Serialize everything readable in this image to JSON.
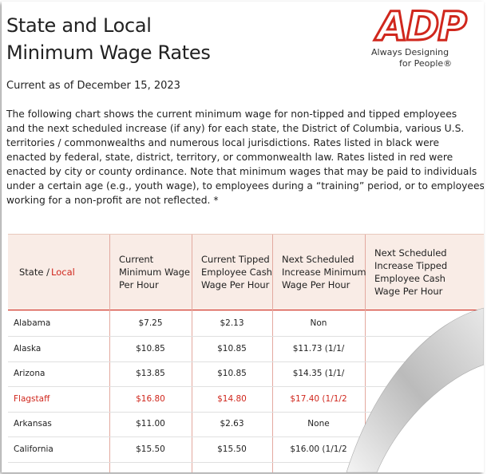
{
  "header": {
    "title_line1": "State and Local",
    "title_line2": "Minimum Wage Rates",
    "logo": "ADP",
    "logo_tagline1": "Always Designing",
    "logo_tagline2": "for People®"
  },
  "date": "Current as of December 15, 2023",
  "intro": [
    "The following chart shows the current minimum wage for non-tipped and tipped employees",
    "and the next scheduled increase (if any) for each state, the District of Columbia, various U.S.",
    "territories / commonwealths and numerous local jurisdictions.  Rates listed in black were",
    "enacted by federal, state, district, territory, or commonwealth law. Rates listed in red were",
    "enacted by city or county ordinance.  Note that minimum wages that may be paid to individuals",
    "under a certain age (e.g., youth wage), to employees during a “training” period, or to employees",
    "working for a non-profit are not reflected. *"
  ],
  "table": {
    "state_label": "State /",
    "local_label": "Local",
    "columns": [
      [
        "Current",
        "Minimum Wage",
        "Per Hour"
      ],
      [
        "Current Tipped",
        "Employee Cash",
        "Wage Per Hour"
      ],
      [
        "Next Scheduled",
        "Increase Minimum",
        "Wage Per Hour"
      ],
      [
        "Next Scheduled",
        "Increase Tipped",
        "Employee Cash",
        "Wage Per Hour"
      ]
    ],
    "rows": [
      {
        "local": false,
        "cells": [
          "Alabama",
          "$7.25",
          "$2.13",
          "Non"
        ]
      },
      {
        "local": false,
        "cells": [
          "Alaska",
          "$10.85",
          "$10.85",
          "$11.73 (1/1/"
        ]
      },
      {
        "local": false,
        "cells": [
          "Arizona",
          "$13.85",
          "$10.85",
          "$14.35 (1/1/"
        ]
      },
      {
        "local": true,
        "cells": [
          "Flagstaff",
          "$16.80",
          "$14.80",
          "$17.40 (1/1/2"
        ]
      },
      {
        "local": false,
        "cells": [
          "Arkansas",
          "$11.00",
          "$2.63",
          "None"
        ]
      },
      {
        "local": false,
        "cells": [
          "California",
          "$15.50",
          "$15.50",
          "$16.00 (1/1/2"
        ]
      }
    ]
  }
}
